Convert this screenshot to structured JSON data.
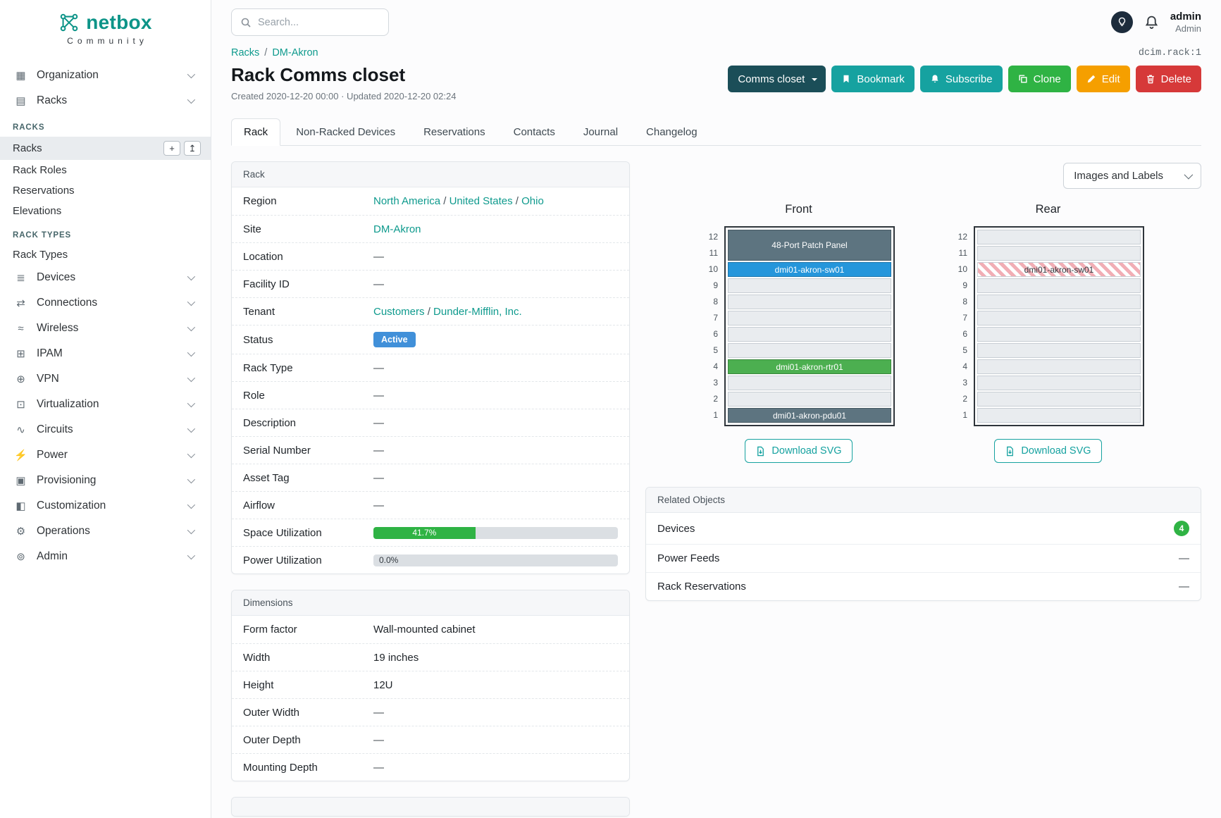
{
  "colors": {
    "brand_teal": "#0d9488",
    "link_teal": "#0e9a8d",
    "button_teal": "#16a2a0",
    "button_dark_teal": "#1b4e58",
    "button_green": "#2fb344",
    "button_amber": "#f59f00",
    "button_red": "#d63939",
    "status_active_blue": "#4190d9",
    "badge_green": "#2fb344",
    "device_dark_gray": "#5d7480",
    "device_blue": "#2596db",
    "device_green": "#4caf50",
    "hatch_red": "#f1aeb5"
  },
  "sidebar": {
    "brand": "netbox",
    "brand_sub": "Community",
    "nodes": [
      {
        "type": "item",
        "label": "Organization",
        "icon": "organization-icon",
        "glyph": "▦"
      },
      {
        "type": "item",
        "label": "Racks",
        "icon": "racks-icon",
        "glyph": "▤",
        "expanded": true
      },
      {
        "type": "heading",
        "label": "RACKS"
      },
      {
        "type": "sub",
        "label": "Racks",
        "active": true,
        "actions": true
      },
      {
        "type": "sub",
        "label": "Rack Roles"
      },
      {
        "type": "sub",
        "label": "Reservations"
      },
      {
        "type": "sub",
        "label": "Elevations"
      },
      {
        "type": "heading",
        "label": "RACK TYPES"
      },
      {
        "type": "sub",
        "label": "Rack Types"
      },
      {
        "type": "item",
        "label": "Devices",
        "icon": "devices-icon",
        "glyph": "≣"
      },
      {
        "type": "item",
        "label": "Connections",
        "icon": "connections-icon",
        "glyph": "⇄"
      },
      {
        "type": "item",
        "label": "Wireless",
        "icon": "wireless-icon",
        "glyph": "≈"
      },
      {
        "type": "item",
        "label": "IPAM",
        "icon": "ipam-icon",
        "glyph": "⊞"
      },
      {
        "type": "item",
        "label": "VPN",
        "icon": "vpn-icon",
        "glyph": "⊕"
      },
      {
        "type": "item",
        "label": "Virtualization",
        "icon": "virtualization-icon",
        "glyph": "⊡"
      },
      {
        "type": "item",
        "label": "Circuits",
        "icon": "circuits-icon",
        "glyph": "∿"
      },
      {
        "type": "item",
        "label": "Power",
        "icon": "power-icon",
        "glyph": "⚡"
      },
      {
        "type": "item",
        "label": "Provisioning",
        "icon": "provisioning-icon",
        "glyph": "▣"
      },
      {
        "type": "item",
        "label": "Customization",
        "icon": "customization-icon",
        "glyph": "◧"
      },
      {
        "type": "item",
        "label": "Operations",
        "icon": "operations-icon",
        "glyph": "⚙"
      },
      {
        "type": "item",
        "label": "Admin",
        "icon": "admin-icon",
        "glyph": "⊚"
      }
    ]
  },
  "topbar": {
    "search_placeholder": "Search...",
    "user_name": "admin",
    "user_role": "Admin"
  },
  "breadcrumb": {
    "links": [
      "Racks",
      "DM-Akron"
    ],
    "object_ref": "dcim.rack:1"
  },
  "page": {
    "title": "Rack Comms closet",
    "meta": "Created 2020-12-20 00:00 · Updated 2020-12-20 02:24"
  },
  "actions": [
    {
      "label": "Comms closet",
      "kind": "context",
      "caret": true
    },
    {
      "label": "Bookmark",
      "kind": "teal",
      "icon": "bookmark-icon"
    },
    {
      "label": "Subscribe",
      "kind": "teal",
      "icon": "bell-icon"
    },
    {
      "label": "Clone",
      "kind": "green",
      "icon": "clone-icon"
    },
    {
      "label": "Edit",
      "kind": "amber",
      "icon": "edit-icon"
    },
    {
      "label": "Delete",
      "kind": "red",
      "icon": "delete-icon"
    }
  ],
  "tabs": [
    {
      "label": "Rack",
      "active": true
    },
    {
      "label": "Non-Racked Devices"
    },
    {
      "label": "Reservations"
    },
    {
      "label": "Contacts"
    },
    {
      "label": "Journal"
    },
    {
      "label": "Changelog"
    }
  ],
  "rack_card": {
    "title": "Rack",
    "rows": [
      {
        "label": "Region",
        "kind": "links",
        "links": [
          "North America",
          "United States",
          "Ohio"
        ]
      },
      {
        "label": "Site",
        "kind": "links",
        "links": [
          "DM-Akron"
        ]
      },
      {
        "label": "Location",
        "kind": "dash",
        "value": "—"
      },
      {
        "label": "Facility ID",
        "kind": "dash",
        "value": "—"
      },
      {
        "label": "Tenant",
        "kind": "links",
        "links": [
          "Customers",
          "Dunder-Mifflin, Inc."
        ]
      },
      {
        "label": "Status",
        "kind": "badge",
        "value": "Active"
      },
      {
        "label": "Rack Type",
        "kind": "dash",
        "value": "—"
      },
      {
        "label": "Role",
        "kind": "dash",
        "value": "—"
      },
      {
        "label": "Description",
        "kind": "dash",
        "value": "—"
      },
      {
        "label": "Serial Number",
        "kind": "dash",
        "value": "—"
      },
      {
        "label": "Asset Tag",
        "kind": "dash",
        "value": "—"
      },
      {
        "label": "Airflow",
        "kind": "dash",
        "value": "—"
      },
      {
        "label": "Space Utilization",
        "kind": "progress",
        "percent": 41.7,
        "value": "41.7%"
      },
      {
        "label": "Power Utilization",
        "kind": "progress",
        "percent": 0.0,
        "value": "0.0%"
      }
    ]
  },
  "dimensions_card": {
    "title": "Dimensions",
    "rows": [
      {
        "label": "Form factor",
        "kind": "text",
        "value": "Wall-mounted cabinet"
      },
      {
        "label": "Width",
        "kind": "text",
        "value": "19 inches"
      },
      {
        "label": "Height",
        "kind": "text",
        "value": "12U"
      },
      {
        "label": "Outer Width",
        "kind": "dash",
        "value": "—"
      },
      {
        "label": "Outer Depth",
        "kind": "dash",
        "value": "—"
      },
      {
        "label": "Mounting Depth",
        "kind": "dash",
        "value": "—"
      }
    ]
  },
  "elevations": {
    "toolbar_label": "Images and Labels",
    "download_label": "Download SVG",
    "views": [
      {
        "title": "Front",
        "units": [
          12,
          11,
          10,
          9,
          8,
          7,
          6,
          5,
          4,
          3,
          2,
          1
        ],
        "slots": [
          {
            "span": 2,
            "label": "48-Port Patch Panel",
            "bg": "#5d7480",
            "fg": "#ffffff"
          },
          {
            "span": 1,
            "label": "dmi01-akron-sw01",
            "bg": "#2596db",
            "fg": "#ffffff"
          },
          {
            "span": 1
          },
          {
            "span": 1
          },
          {
            "span": 1
          },
          {
            "span": 1
          },
          {
            "span": 1
          },
          {
            "span": 1,
            "label": "dmi01-akron-rtr01",
            "bg": "#4caf50",
            "fg": "#ffffff"
          },
          {
            "span": 1
          },
          {
            "span": 1
          },
          {
            "span": 1,
            "label": "dmi01-akron-pdu01",
            "bg": "#5d7480",
            "fg": "#ffffff"
          }
        ]
      },
      {
        "title": "Rear",
        "units": [
          12,
          11,
          10,
          9,
          8,
          7,
          6,
          5,
          4,
          3,
          2,
          1
        ],
        "slots": [
          {
            "span": 1
          },
          {
            "span": 1
          },
          {
            "span": 1,
            "label": "dmi01-akron-sw01",
            "hatch": true
          },
          {
            "span": 1
          },
          {
            "span": 1
          },
          {
            "span": 1
          },
          {
            "span": 1
          },
          {
            "span": 1
          },
          {
            "span": 1
          },
          {
            "span": 1
          },
          {
            "span": 1
          },
          {
            "span": 1
          }
        ]
      }
    ]
  },
  "related_objects": {
    "title": "Related Objects",
    "rows": [
      {
        "label": "Devices",
        "badge": "4"
      },
      {
        "label": "Power Feeds",
        "value": "—"
      },
      {
        "label": "Rack Reservations",
        "value": "—"
      }
    ]
  }
}
